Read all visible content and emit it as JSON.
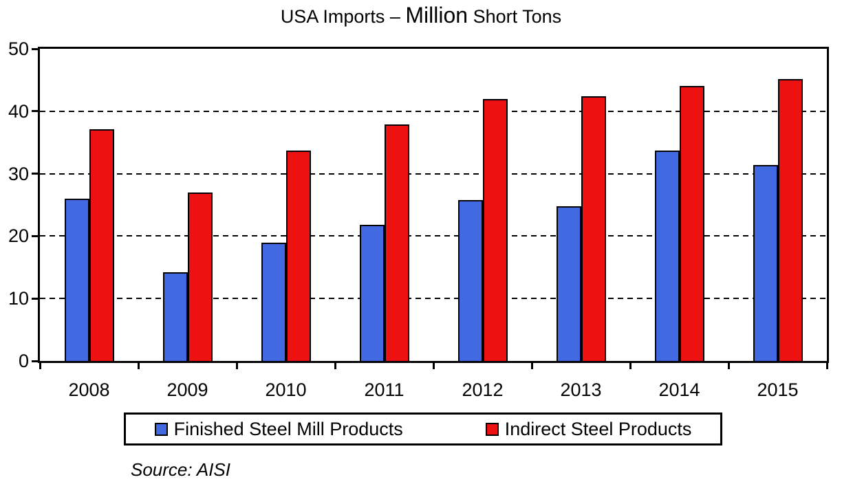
{
  "title": {
    "prefix": "USA Imports – ",
    "emphasis": "Million",
    "suffix": " Short Tons"
  },
  "source": "Source: AISI",
  "legend": {
    "items": [
      {
        "label": "Finished Steel Mill Products",
        "color": "#4169E1"
      },
      {
        "label": "Indirect Steel Products",
        "color": "#EE1111"
      }
    ]
  },
  "colors": {
    "blue_series": "#4169E1",
    "red_series": "#EE1111",
    "axis": "#000000",
    "background": "#FFFFFF"
  },
  "chart_data": {
    "type": "bar",
    "title": "USA Imports – Million Short Tons",
    "xlabel": "",
    "ylabel": "",
    "categories": [
      "2008",
      "2009",
      "2010",
      "2011",
      "2012",
      "2013",
      "2014",
      "2015"
    ],
    "series": [
      {
        "name": "Finished Steel Mill Products",
        "color": "#4169E1",
        "values": [
          26.0,
          14.2,
          18.9,
          21.8,
          25.8,
          24.8,
          33.7,
          31.4
        ]
      },
      {
        "name": "Indirect Steel Products",
        "color": "#EE1111",
        "values": [
          37.1,
          27.0,
          33.7,
          37.9,
          42.0,
          42.4,
          44.1,
          45.2
        ]
      }
    ],
    "ylim": [
      0,
      50
    ],
    "yticks": [
      0,
      10,
      20,
      30,
      40,
      50
    ],
    "grid": "horizontal dashed lines at 10, 20, 30, 40",
    "legend_position": "bottom",
    "source": "Source: AISI"
  }
}
